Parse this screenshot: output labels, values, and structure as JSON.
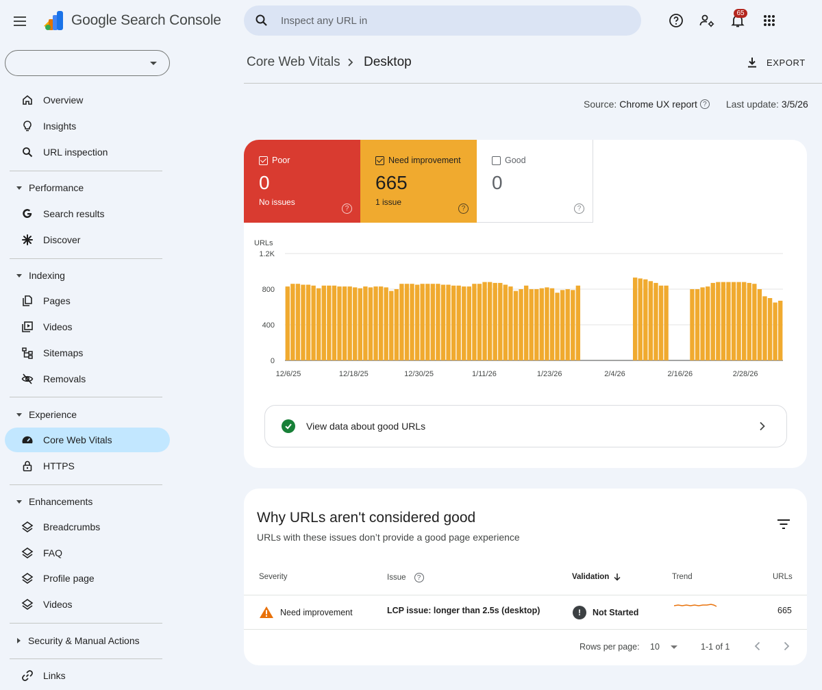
{
  "app": {
    "title": "Google Search Console"
  },
  "search": {
    "placeholder": "Inspect any URL in"
  },
  "notifications": {
    "count": "65"
  },
  "property": {
    "value": ""
  },
  "sidebar": {
    "top_items": [
      {
        "label": "Overview",
        "icon": "home-icon"
      },
      {
        "label": "Insights",
        "icon": "lightbulb-icon"
      },
      {
        "label": "URL inspection",
        "icon": "search-icon"
      }
    ],
    "sections": [
      {
        "label": "Performance",
        "items": [
          {
            "label": "Search results",
            "icon": "google-g-icon"
          },
          {
            "label": "Discover",
            "icon": "asterisk-icon"
          }
        ]
      },
      {
        "label": "Indexing",
        "items": [
          {
            "label": "Pages",
            "icon": "pages-icon"
          },
          {
            "label": "Videos",
            "icon": "video-icon"
          },
          {
            "label": "Sitemaps",
            "icon": "sitemap-icon"
          },
          {
            "label": "Removals",
            "icon": "eye-off-icon"
          }
        ]
      },
      {
        "label": "Experience",
        "items": [
          {
            "label": "Core Web Vitals",
            "icon": "gauge-icon"
          },
          {
            "label": "HTTPS",
            "icon": "lock-icon"
          }
        ]
      },
      {
        "label": "Enhancements",
        "items": [
          {
            "label": "Breadcrumbs",
            "icon": "layers-icon"
          },
          {
            "label": "FAQ",
            "icon": "layers-icon"
          },
          {
            "label": "Profile page",
            "icon": "layers-icon"
          },
          {
            "label": "Videos",
            "icon": "layers-icon"
          }
        ]
      },
      {
        "label": "Security & Manual Actions",
        "items": []
      }
    ],
    "bottom_items": [
      {
        "label": "Links",
        "icon": "link-icon"
      }
    ]
  },
  "header": {
    "breadcrumb_parent": "Core Web Vitals",
    "breadcrumb_current": "Desktop",
    "export_label": "EXPORT",
    "source_label": "Source:",
    "source_value": "Chrome UX report",
    "last_update_label": "Last update:",
    "last_update_value": "3/5/26"
  },
  "summary": {
    "poor": {
      "label": "Poor",
      "value": "0",
      "sub": "No issues",
      "checked": true,
      "color": "#d93b30"
    },
    "need_improvement": {
      "label": "Need improvement",
      "value": "665",
      "sub": "1 issue",
      "checked": true,
      "color": "#f0aa2f"
    },
    "good": {
      "label": "Good",
      "value": "0",
      "sub": "",
      "checked": false
    }
  },
  "chart_data": {
    "type": "bar",
    "ylabel": "URLs",
    "yticks": [
      "0",
      "400",
      "800",
      "1.2K"
    ],
    "ylim": [
      0,
      1200
    ],
    "xticks": [
      "12/6/25",
      "12/18/25",
      "12/30/25",
      "1/11/26",
      "1/23/26",
      "2/4/26",
      "2/16/26",
      "2/28/26"
    ],
    "grid": true,
    "series": [
      {
        "color": "#f0aa2f",
        "values": [
          830,
          860,
          860,
          850,
          850,
          840,
          810,
          840,
          840,
          840,
          830,
          830,
          830,
          820,
          810,
          830,
          820,
          830,
          830,
          820,
          780,
          800,
          860,
          860,
          860,
          850,
          860,
          860,
          860,
          860,
          850,
          850,
          840,
          840,
          830,
          830,
          860,
          860,
          880,
          880,
          870,
          870,
          850,
          830,
          780,
          800,
          840,
          800,
          800,
          810,
          820,
          810,
          760,
          790,
          800,
          790,
          840,
          null,
          null,
          null,
          null,
          null,
          null,
          null,
          null,
          null,
          null,
          930,
          920,
          910,
          890,
          870,
          840,
          840,
          null,
          null,
          null,
          null,
          800,
          800,
          820,
          830,
          870,
          880,
          880,
          880,
          880,
          880,
          880,
          870,
          860,
          800,
          720,
          700,
          650,
          670
        ]
      }
    ]
  },
  "good_urls_link": "View data about good URLs",
  "issues": {
    "title": "Why URLs aren't considered good",
    "subtitle": "URLs with these issues don’t provide a good page experience",
    "columns": {
      "severity": "Severity",
      "issue": "Issue",
      "validation": "Validation",
      "trend": "Trend",
      "urls": "URLs"
    },
    "rows": [
      {
        "severity": "Need improvement",
        "issue": "LCP issue: longer than 2.5s (desktop)",
        "validation": "Not Started",
        "urls": "665"
      }
    ],
    "pager": {
      "rows_per_page_label": "Rows per page:",
      "rows_per_page": "10",
      "range": "1-1 of 1"
    }
  }
}
